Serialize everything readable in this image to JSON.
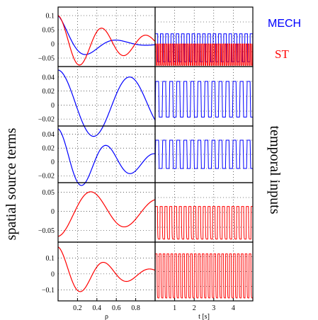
{
  "figure": {
    "left_ylabel": "spatial source terms",
    "right_ylabel": "temporal inputs",
    "legend": [
      {
        "label": "MECH",
        "color": "#0000ff"
      },
      {
        "label": "ST",
        "color": "#ff0000"
      }
    ]
  },
  "chart_data": [
    {
      "type": "line",
      "panel": "spatial-1",
      "xlabel": "",
      "xlim": [
        0,
        1
      ],
      "ylim": [
        -0.08,
        0.13
      ],
      "yticks": [
        "0.1",
        "0.05",
        "0",
        "−0.05"
      ],
      "ytick_values": [
        0.1,
        0.05,
        0,
        -0.05
      ],
      "grid": true,
      "series": [
        {
          "name": "MECH",
          "color": "#0000ff",
          "kind": "spatial",
          "amp": 0.1,
          "freq": 1.6,
          "decay": 3.3,
          "phase": 0
        },
        {
          "name": "ST",
          "color": "#ff0000",
          "kind": "spatial",
          "amp": 0.1,
          "freq": 2.2,
          "decay": 1.3,
          "phase": 0
        }
      ]
    },
    {
      "type": "line",
      "panel": "temporal-1",
      "xlim": [
        0,
        5
      ],
      "grid": true,
      "series": [
        {
          "name": "MECH",
          "color": "#0000ff",
          "kind": "square",
          "period": 0.27,
          "lo": 0.08,
          "hi": 0.55
        },
        {
          "name": "ST",
          "color": "#ff0000",
          "kind": "spike",
          "period": 0.108,
          "lo": 0.02,
          "hi": 0.38
        }
      ]
    },
    {
      "type": "line",
      "panel": "spatial-2",
      "xlim": [
        0,
        1
      ],
      "ylim": [
        -0.03,
        0.055
      ],
      "yticks": [
        "0.04",
        "0.02",
        "0",
        "−0.02"
      ],
      "ytick_values": [
        0.04,
        0.02,
        0,
        -0.02
      ],
      "grid": true,
      "series": [
        {
          "name": "MECH",
          "color": "#0000ff",
          "kind": "spatial",
          "amp": 0.05,
          "freq": 1.35,
          "decay": 0.3,
          "phase": 0
        }
      ]
    },
    {
      "type": "line",
      "panel": "temporal-2",
      "xlim": [
        0,
        5
      ],
      "grid": true,
      "series": [
        {
          "name": "MECH",
          "color": "#0000ff",
          "kind": "trapezoid",
          "period": 0.36,
          "lo": 0.15,
          "hi": 0.75
        }
      ]
    },
    {
      "type": "line",
      "panel": "spatial-3",
      "xlim": [
        0,
        1
      ],
      "ylim": [
        -0.03,
        0.052
      ],
      "yticks": [
        "0.04",
        "0.02",
        "0",
        "−0.02"
      ],
      "ytick_values": [
        0.04,
        0.02,
        0,
        -0.02
      ],
      "grid": true,
      "series": [
        {
          "name": "MECH",
          "color": "#0000ff",
          "kind": "spatial",
          "amp": 0.048,
          "freq": 2.0,
          "decay": 1.4,
          "phase": 0
        }
      ]
    },
    {
      "type": "line",
      "panel": "temporal-3",
      "xlim": [
        0,
        5
      ],
      "grid": true,
      "series": [
        {
          "name": "MECH",
          "color": "#0000ff",
          "kind": "trapezoid",
          "period": 0.36,
          "lo": 0.25,
          "hi": 0.75
        }
      ]
    },
    {
      "type": "line",
      "panel": "spatial-4",
      "xlim": [
        0,
        1
      ],
      "ylim": [
        -0.08,
        0.075
      ],
      "yticks": [
        "0.05",
        "0",
        "−0.05"
      ],
      "ytick_values": [
        0.05,
        0,
        -0.05
      ],
      "grid": true,
      "series": [
        {
          "name": "ST",
          "color": "#ff0000",
          "kind": "spatial",
          "amp": -0.065,
          "freq": 1.45,
          "decay": 0.7,
          "phase": 0
        }
      ]
    },
    {
      "type": "line",
      "panel": "temporal-4",
      "xlim": [
        0,
        5
      ],
      "grid": true,
      "series": [
        {
          "name": "ST",
          "color": "#ff0000",
          "kind": "spike",
          "period": 0.245,
          "lo": 0.05,
          "hi": 0.6
        }
      ]
    },
    {
      "type": "line",
      "panel": "spatial-5",
      "xlim": [
        0,
        1
      ],
      "xlabel": "ρ",
      "xticks": [
        "0.2",
        "0.4",
        "0.6",
        "0.8"
      ],
      "xtick_values": [
        0.2,
        0.4,
        0.6,
        0.8
      ],
      "ylim": [
        -0.17,
        0.2
      ],
      "yticks": [
        "0.1",
        "0",
        "−0.1"
      ],
      "ytick_values": [
        0.1,
        0,
        -0.1
      ],
      "grid": true,
      "series": [
        {
          "name": "ST",
          "color": "#ff0000",
          "kind": "spatial",
          "amp": 0.17,
          "freq": 2.1,
          "decay": 1.8,
          "phase": 0
        }
      ]
    },
    {
      "type": "line",
      "panel": "temporal-5",
      "xlim": [
        0,
        5
      ],
      "xlabel": "t [s]",
      "xticks": [
        "1",
        "2",
        "3",
        "4"
      ],
      "xtick_values": [
        1,
        2,
        3,
        4
      ],
      "grid": true,
      "series": [
        {
          "name": "ST",
          "color": "#ff0000",
          "kind": "spike",
          "period": 0.2,
          "lo": 0.05,
          "hi": 0.8
        }
      ]
    }
  ]
}
